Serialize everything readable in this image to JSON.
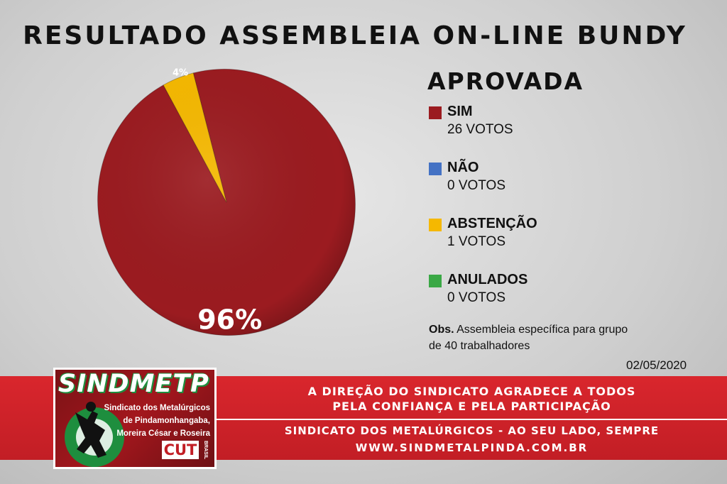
{
  "title": "RESULTADO ASSEMBLEIA ON-LINE BUNDY",
  "status": "APROVADA",
  "legend": [
    {
      "label": "SIM",
      "votes": "26 VOTOS",
      "color": "#9b1b20"
    },
    {
      "label": "NÃO",
      "votes": "0 VOTOS",
      "color": "#4472c4"
    },
    {
      "label": "ABSTENÇÃO",
      "votes": "1 VOTOS",
      "color": "#f5b800"
    },
    {
      "label": "ANULADOS",
      "votes": "0 VOTOS",
      "color": "#3aa845"
    }
  ],
  "obs": {
    "label": "Obs.",
    "text": "Assembleia específica para grupo de 40 trabalhadores"
  },
  "date": "02/05/2020",
  "banner": {
    "line1": "A DIREÇÃO DO SINDICATO AGRADECE A TODOS",
    "line2": "PELA CONFIANÇA E PELA PARTICIPAÇÃO",
    "line3": "SINDICATO DOS METALÚRGICOS - AO SEU LADO, SEMPRE",
    "line4": "WWW.SINDMETALPINDA.COM.BR"
  },
  "logo": {
    "name": "SINDMETP",
    "line1": "Sindicato dos Metalúrgicos",
    "line2": "de Pindamonhangaba,",
    "line3": "Moreira César e Roseira",
    "cut": "CUT",
    "brasil": "BRASIL"
  },
  "chart_data": {
    "type": "pie",
    "categories": [
      "SIM",
      "ABSTENÇÃO"
    ],
    "values": [
      96,
      4
    ],
    "labels": [
      "96%",
      "4%"
    ],
    "colors": [
      "#9b1b20",
      "#f5b800"
    ],
    "counts": [
      26,
      1
    ]
  }
}
